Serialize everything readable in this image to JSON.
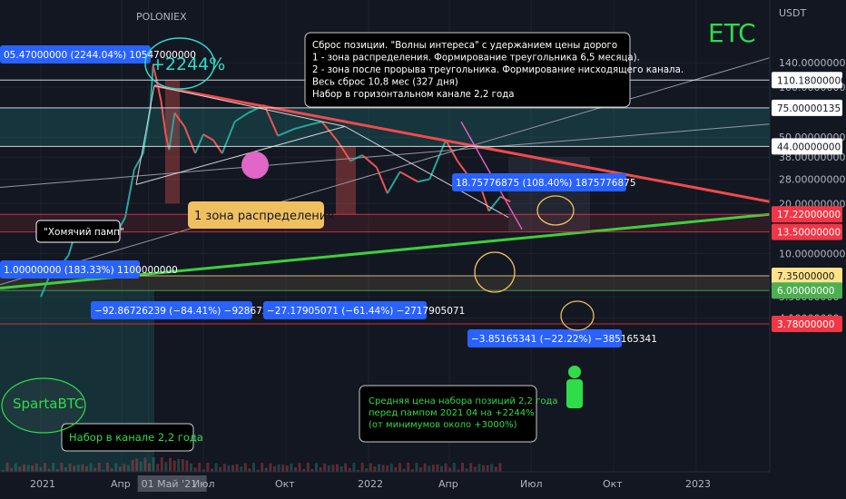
{
  "header": {
    "source": "POLONIEX"
  },
  "chart_data": {
    "type": "line",
    "title": "ETC",
    "currency": "USDT",
    "y_scale": "log",
    "ylim": [
      3.5,
      180
    ],
    "x_ticks": [
      "2021",
      "Апр",
      "01 Май '21",
      "Июл",
      "Окт",
      "2022",
      "Апр",
      "Июл",
      "Окт",
      "2023"
    ],
    "y_ticks": [
      "140.00000000",
      "100.00000000",
      "50.00000000",
      "38.00000000",
      "28.00000000",
      "20.00000000",
      "10.00000000",
      "5.50000000",
      "4.10000000"
    ],
    "price_levels": [
      {
        "label": "110.18000000",
        "value": 110.18,
        "color": "#ffffff",
        "text_color": "#131722"
      },
      {
        "label": "75.00000135",
        "value": 75.0,
        "color": "#ffffff",
        "text_color": "#131722"
      },
      {
        "label": "44.00000000",
        "value": 44.0,
        "color": "#ffffff",
        "text_color": "#131722"
      },
      {
        "label": "17.22000000",
        "value": 17.22,
        "color": "#f23645",
        "text_color": "#ffffff"
      },
      {
        "label": "13.50000000",
        "value": 13.5,
        "color": "#f23645",
        "text_color": "#ffffff"
      },
      {
        "label": "7.35000000",
        "value": 7.35,
        "color": "#ffe38a",
        "text_color": "#131722"
      },
      {
        "label": "6.00000000",
        "value": 6.0,
        "color": "#4caf50",
        "text_color": "#ffffff"
      },
      {
        "label": "3.78000000",
        "value": 3.78,
        "color": "#f23645",
        "text_color": "#ffffff"
      }
    ],
    "measure_tags": [
      "05.47000000 (2244.04%) 10547000000",
      "1.00000000 (183.33%) 1100000000",
      "−92.86726239 (−84.41%) −9286726239",
      "−27.17905071 (−61.44%) −2717905071",
      "18.75776875 (108.40%) 1875776875",
      "−3.85165341 (−22.22%) −385165341"
    ],
    "annotations": {
      "pump_label": "+2244%",
      "hamster_pump": "\"Хомячий памп\"",
      "zone1": "1 зона распределения",
      "channel_label": "Набор в канале 2,2 года",
      "author": "SpartaBTC",
      "main_note": [
        "Сброс позиции. \"Волны интереса\" с удержанием цены дорого",
        "1 - зона распределения. Формирование треугольника 6,5 месяца).",
        "2 - зона после прорыва треугольника. Формирование нисходящего канала.",
        "Весь сброс 10,8 мес (327 дня)",
        "Набор в горизонтальном канале 2,2 года"
      ],
      "avg_note": [
        "Средняя цена набора позиций 2,2 года",
        "перед пампом 2021 04 на +2244%",
        "(от минимумов около +3000%)"
      ]
    },
    "series": [
      {
        "values": [
          [
            "2021-01-01",
            5.5
          ],
          [
            "2021-01-10",
            7.2
          ],
          [
            "2021-01-20",
            8.0
          ],
          [
            "2021-02-01",
            9.8
          ],
          [
            "2021-02-12",
            15.5
          ],
          [
            "2021-02-25",
            12.5
          ],
          [
            "2021-03-10",
            13.2
          ],
          [
            "2021-03-25",
            12.8
          ],
          [
            "2021-04-05",
            16.5
          ],
          [
            "2021-04-15",
            32.0
          ],
          [
            "2021-04-25",
            40.0
          ],
          [
            "2021-05-03",
            75.0
          ],
          [
            "2021-05-06",
            135.0
          ],
          [
            "2021-05-10",
            110.0
          ],
          [
            "2021-05-15",
            82.0
          ],
          [
            "2021-05-20",
            52.0
          ],
          [
            "2021-05-24",
            42.0
          ],
          [
            "2021-05-30",
            70.0
          ],
          [
            "2021-06-10",
            58.0
          ],
          [
            "2021-06-22",
            40.0
          ],
          [
            "2021-07-01",
            52.0
          ],
          [
            "2021-07-12",
            48.0
          ],
          [
            "2021-07-22",
            40.0
          ],
          [
            "2021-08-05",
            62.0
          ],
          [
            "2021-08-20",
            70.0
          ],
          [
            "2021-09-07",
            78.0
          ],
          [
            "2021-09-22",
            51.0
          ],
          [
            "2021-10-10",
            56.0
          ],
          [
            "2021-10-25",
            59.0
          ],
          [
            "2021-11-10",
            62.0
          ],
          [
            "2021-11-28",
            47.0
          ],
          [
            "2021-12-12",
            36.0
          ],
          [
            "2021-12-25",
            39.0
          ],
          [
            "2022-01-10",
            33.0
          ],
          [
            "2022-01-22",
            23.0
          ],
          [
            "2022-02-05",
            31.0
          ],
          [
            "2022-02-25",
            27.0
          ],
          [
            "2022-03-10",
            28.0
          ],
          [
            "2022-03-28",
            48.0
          ],
          [
            "2022-04-10",
            36.0
          ],
          [
            "2022-04-25",
            28.0
          ],
          [
            "2022-05-05",
            26.0
          ],
          [
            "2022-05-15",
            18.0
          ],
          [
            "2022-05-28",
            22.0
          ],
          [
            "2022-06-08",
            20.5
          ]
        ]
      }
    ]
  },
  "colors": {
    "up": "#26a69a",
    "down": "#ef5350",
    "resistance": "#f24a4a",
    "support": "#3ccf3c",
    "zone": "rgba(38,166,154,0.22)",
    "accent": "#2962ff"
  }
}
